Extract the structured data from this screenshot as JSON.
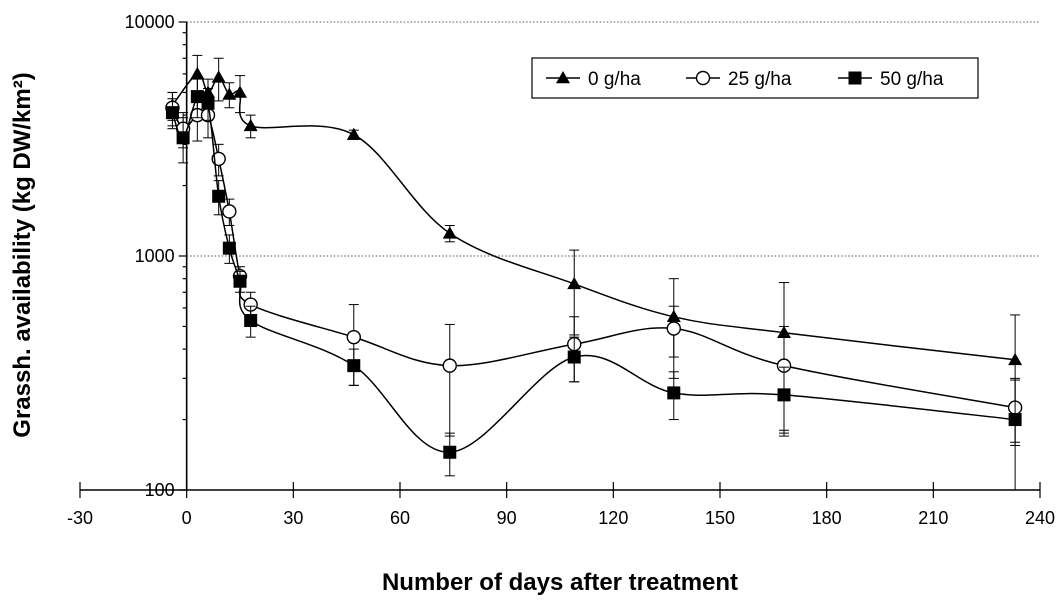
{
  "chart_data": {
    "type": "line",
    "xlabel": "Number of days after treatment",
    "ylabel": "Grassh. availability (kg DW/km²)",
    "xlim": [
      -30,
      240
    ],
    "ylim": [
      100,
      10000
    ],
    "y_scale": "log",
    "x_ticks": [
      -30,
      0,
      30,
      60,
      90,
      120,
      150,
      180,
      210,
      240
    ],
    "y_ticks": [
      100,
      1000,
      10000
    ],
    "grid": "horizontal",
    "legend_position": "top-right",
    "series": [
      {
        "name": "0 g/ha",
        "marker": "triangle-filled",
        "x": [
          -4,
          3,
          6,
          9,
          12,
          15,
          18,
          47,
          74,
          109,
          137,
          168,
          233
        ],
        "y": [
          4400,
          6000,
          5000,
          5800,
          4900,
          5000,
          3600,
          3300,
          1250,
          760,
          550,
          470,
          360
        ],
        "err": [
          600,
          1200,
          700,
          1200,
          600,
          900,
          400,
          150,
          100,
          300,
          250,
          300,
          200
        ]
      },
      {
        "name": "25 g/ha",
        "marker": "circle-open",
        "x": [
          -4,
          -1,
          3,
          6,
          9,
          12,
          15,
          18,
          47,
          74,
          109,
          137,
          168,
          233
        ],
        "y": [
          4300,
          3500,
          4000,
          4000,
          2600,
          1550,
          820,
          620,
          450,
          340,
          420,
          490,
          340,
          225
        ],
        "err": [
          700,
          600,
          900,
          800,
          400,
          200,
          80,
          80,
          170,
          170,
          130,
          120,
          160,
          70
        ]
      },
      {
        "name": "50 g/ha",
        "marker": "square-filled",
        "x": [
          -4,
          -1,
          3,
          6,
          9,
          12,
          15,
          18,
          47,
          74,
          109,
          137,
          168,
          233
        ],
        "y": [
          4100,
          3200,
          4800,
          4500,
          1800,
          1080,
          780,
          530,
          340,
          145,
          370,
          260,
          255,
          200
        ],
        "err": [
          600,
          700,
          900,
          700,
          300,
          150,
          80,
          80,
          60,
          30,
          80,
          60,
          80,
          100
        ]
      }
    ]
  }
}
